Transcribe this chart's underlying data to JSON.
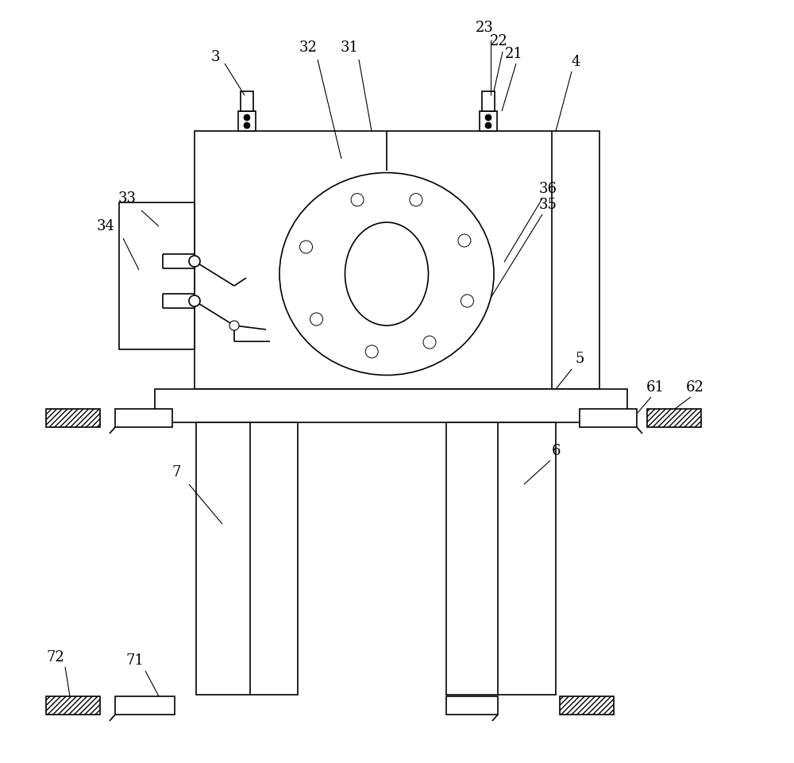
{
  "bg_color": "#ffffff",
  "line_color": "#000000",
  "fig_width": 10.0,
  "fig_height": 9.61,
  "dpi": 100,
  "ann_lw": 0.8,
  "draw_lw": 1.2,
  "label_fs": 13
}
